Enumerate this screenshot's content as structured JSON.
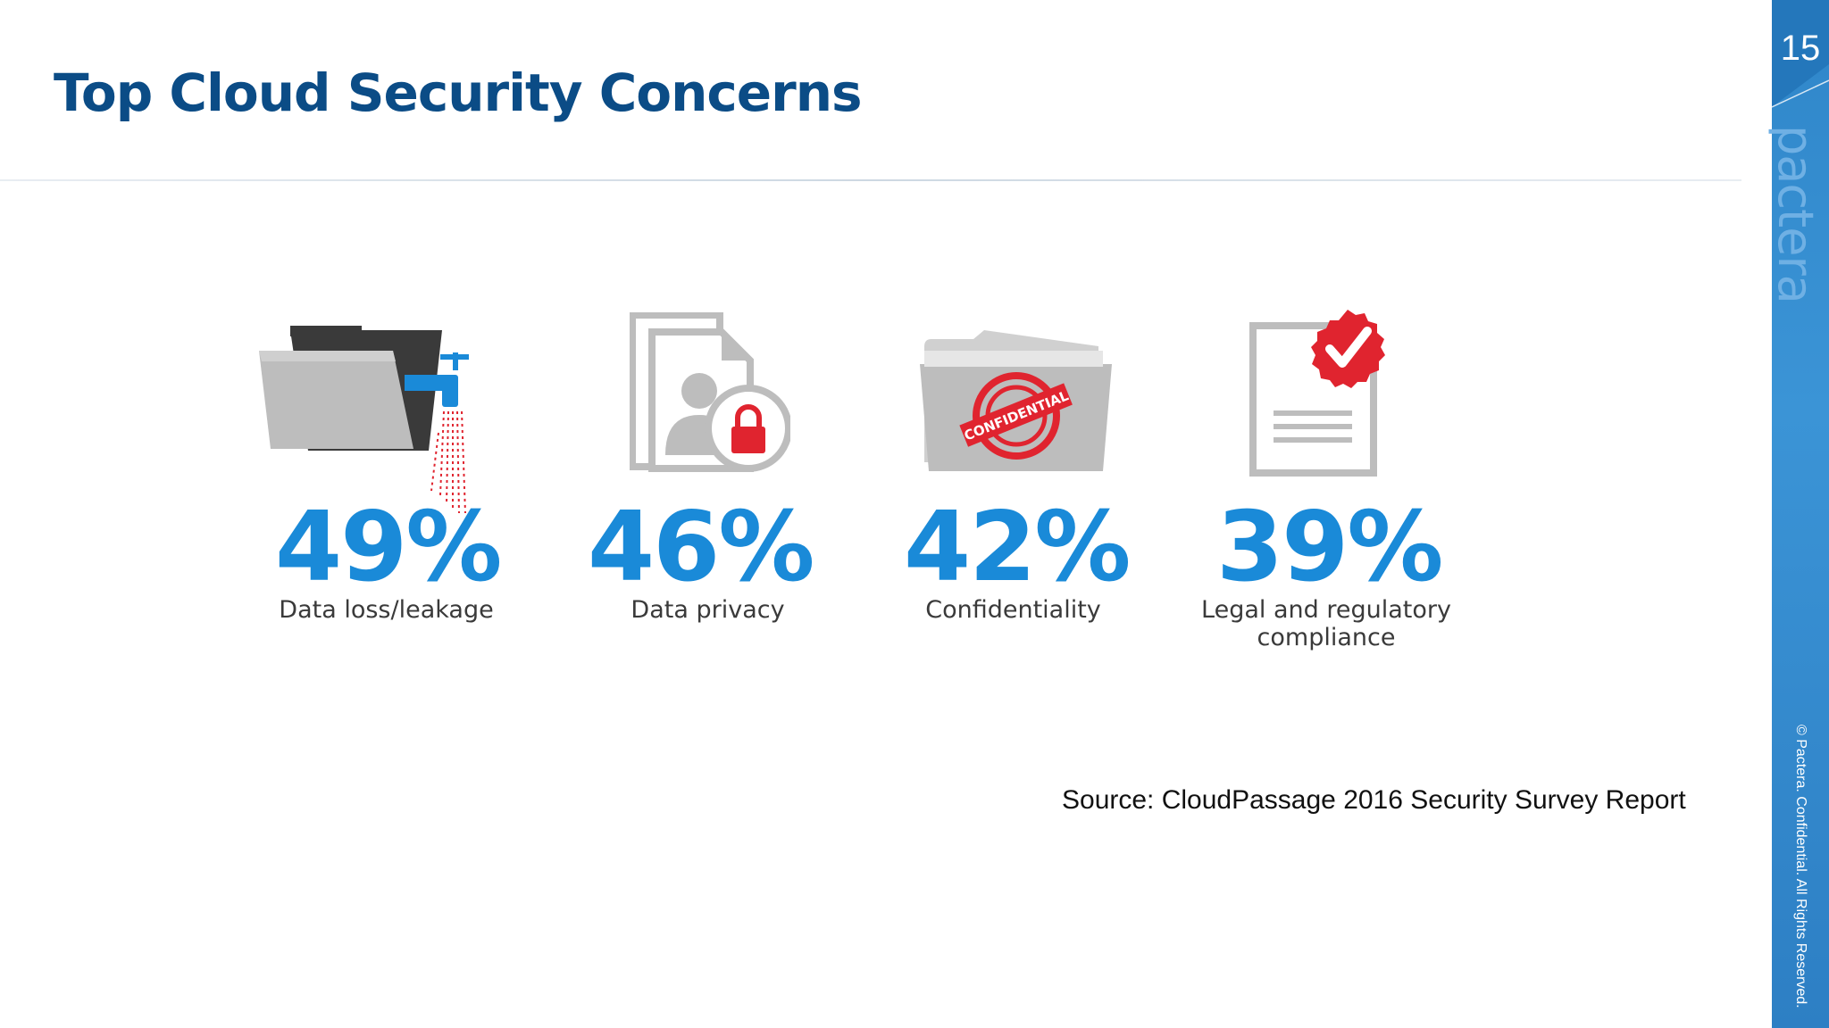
{
  "slide": {
    "title": "Top Cloud Security Concerns",
    "page_number": "15",
    "brand": "pactera",
    "copyright": "© Pactera. Confidential. All Rights Reserved.",
    "source": "Source: CloudPassage 2016 Security Survey Report"
  },
  "stats": [
    {
      "value": "49%",
      "label": "Data loss/leakage",
      "icon": "folder-leak-icon"
    },
    {
      "value": "46%",
      "label": "Data privacy",
      "icon": "locked-document-icon"
    },
    {
      "value": "42%",
      "label": "Confidentiality",
      "icon": "confidential-folder-icon"
    },
    {
      "value": "39%",
      "label_line1": "Legal and regulatory",
      "label_line2": "compliance",
      "icon": "checked-document-icon"
    }
  ],
  "stamp_text": "CONFIDENTIAL",
  "colors": {
    "title": "#0b4c86",
    "accent": "#1a8ad8",
    "sidebar": "#2f86c9",
    "alert_red": "#e0242f",
    "icon_gray": "#bdbdbd"
  }
}
